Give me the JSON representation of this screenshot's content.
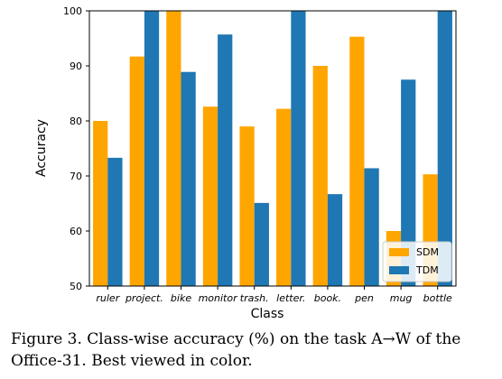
{
  "chart_data": {
    "type": "bar",
    "categories": [
      "ruler",
      "project.",
      "bike",
      "monitor",
      "trash.",
      "letter.",
      "book.",
      "pen",
      "mug",
      "bottle"
    ],
    "series": [
      {
        "name": "SDM",
        "color": "#ffa500",
        "values": [
          80.0,
          91.7,
          100.0,
          82.6,
          79.0,
          82.2,
          90.0,
          95.3,
          60.0,
          70.3
        ]
      },
      {
        "name": "TDM",
        "color": "#1f77b4",
        "values": [
          73.3,
          100.0,
          88.9,
          95.7,
          65.1,
          100.0,
          66.7,
          71.4,
          87.5,
          100.0
        ]
      }
    ],
    "xlabel": "Class",
    "ylabel": "Accuracy",
    "ylim": [
      50,
      100
    ],
    "yticks": [
      "50",
      "60",
      "70",
      "80",
      "90",
      "100"
    ],
    "legend_position": "bottom-right"
  },
  "caption": {
    "line1": "Figure 3. Class-wise accuracy (%) on the task A→W of the",
    "line2": "Office-31. Best viewed in color."
  }
}
